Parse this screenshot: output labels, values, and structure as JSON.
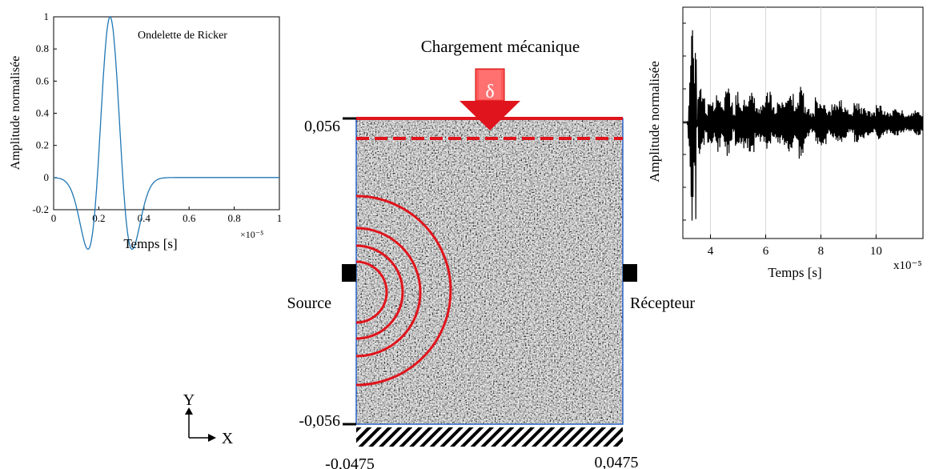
{
  "left_chart": {
    "legend": "Ondelette de  Ricker",
    "ylabel": "Amplitude normalisée",
    "xlabel": "Temps [s]",
    "x_exponent": "×10⁻⁵",
    "x_ticks": [
      "0",
      "0.2",
      "0.4",
      "0.6",
      "0.8",
      "1"
    ],
    "y_ticks": [
      "-0.2",
      "0",
      "0.2",
      "0.4",
      "0.6",
      "0.8",
      "1"
    ]
  },
  "right_chart": {
    "ylabel": "Amplitude normalisée",
    "xlabel": "Temps [s]",
    "x_exponent": "x10⁻⁵",
    "x_ticks": [
      "4",
      "6",
      "8",
      "10"
    ]
  },
  "model": {
    "load_title": "Chargement mécanique",
    "load_symbol": "δ",
    "source_label": "Source",
    "receiver_label": "Récepteur",
    "y_top": "0,056",
    "y_bottom": "-0,056",
    "x_left": "-0,0475",
    "x_right": "0,0475",
    "axis_y": "Y",
    "axis_x": "X"
  },
  "chart_data": [
    {
      "type": "line",
      "series": [
        {
          "name": "Ondelette de  Ricker",
          "x": [
            0,
            0.05,
            0.1,
            0.13,
            0.15,
            0.18,
            0.2,
            0.22,
            0.25,
            0.28,
            0.3,
            0.32,
            0.35,
            0.38,
            0.4,
            0.45,
            0.5,
            0.6,
            0.8,
            1.0
          ],
          "y": [
            0,
            -0.01,
            -0.06,
            -0.12,
            -0.13,
            -0.02,
            0.3,
            0.72,
            1.0,
            0.72,
            0.3,
            -0.02,
            -0.13,
            -0.12,
            -0.06,
            -0.01,
            0,
            0,
            0,
            0
          ]
        }
      ],
      "xlabel": "Temps [s]",
      "ylabel": "Amplitude normalisée",
      "xlim": [
        0,
        1
      ],
      "ylim": [
        -0.2,
        1
      ],
      "x_scale": "×10⁻⁵",
      "grid": false
    },
    {
      "type": "line",
      "series": [
        {
          "x": [
            3.0,
            3.1,
            3.2,
            3.25,
            3.3,
            3.35,
            3.4,
            3.45,
            3.5,
            3.55,
            3.6,
            3.7,
            3.8,
            3.9,
            4.0,
            4.1,
            4.2,
            4.3,
            4.4,
            4.5,
            4.6,
            4.7,
            4.8,
            4.9,
            5.0,
            5.2,
            5.4,
            5.6,
            5.8,
            6.0,
            6.2,
            6.4,
            6.6,
            6.8,
            7.0,
            7.2,
            7.4,
            7.6,
            7.8,
            8.0,
            8.2,
            8.4,
            8.6,
            8.8,
            9.0,
            9.2,
            9.4,
            9.6,
            9.8,
            10.0,
            10.2,
            10.4,
            10.6,
            10.8,
            11.0,
            11.2,
            11.4,
            11.6
          ],
          "y": [
            0,
            0.02,
            -0.25,
            0.6,
            -1.0,
            0.9,
            -0.5,
            1.0,
            -0.05,
            0.3,
            -0.35,
            0.25,
            -0.1,
            0.2,
            -0.25,
            0.15,
            -0.3,
            0.25,
            -0.15,
            0.3,
            -0.35,
            0.2,
            -0.1,
            0.3,
            -0.2,
            0.25,
            -0.3,
            0.15,
            -0.2,
            0.3,
            -0.15,
            0.2,
            -0.25,
            0.28,
            -0.2,
            0.35,
            -0.15,
            0.1,
            -0.25,
            0.22,
            -0.12,
            0.18,
            -0.22,
            0.15,
            -0.1,
            0.2,
            -0.15,
            0.12,
            -0.1,
            0.18,
            -0.12,
            0.1,
            -0.14,
            0.12,
            -0.08,
            0.1,
            -0.12,
            0.08
          ]
        }
      ],
      "xlabel": "Temps [s]",
      "ylabel": "Amplitude normalisée",
      "xlim": [
        3,
        11.7
      ],
      "ylim": [
        -1.1,
        1.1
      ],
      "x_scale": "x10⁻⁵",
      "grid": true
    }
  ]
}
